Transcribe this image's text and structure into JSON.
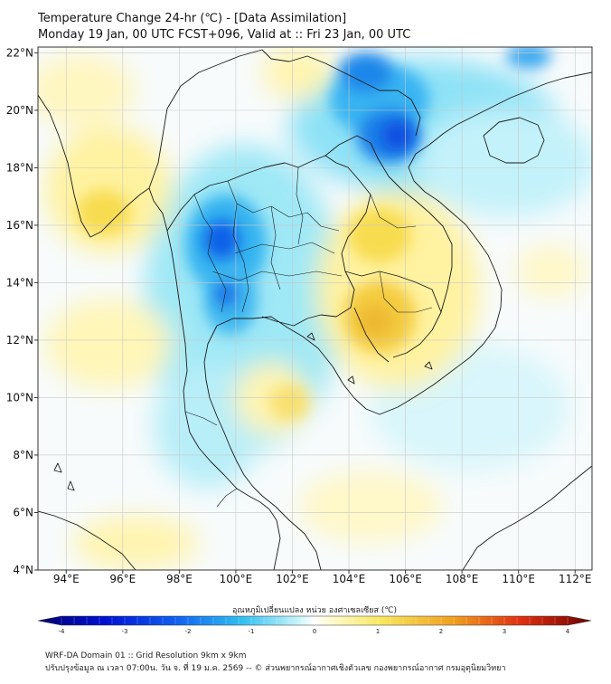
{
  "title_line1": "Temperature Change 24-hr (℃) - [Data Assimilation]",
  "title_line2": "Monday 19 Jan, 00 UTC FCST+096, Valid at :: Fri 23 Jan, 00 UTC",
  "lat_labels": [
    "22°N",
    "20°N",
    "18°N",
    "16°N",
    "14°N",
    "12°N",
    "10°N",
    "8°N",
    "6°N",
    "4°N"
  ],
  "lat_values": [
    22,
    20,
    18,
    16,
    14,
    12,
    10,
    8,
    6,
    4
  ],
  "lon_labels": [
    "94°E",
    "96°E",
    "98°E",
    "100°E",
    "102°E",
    "104°E",
    "106°E",
    "108°E",
    "110°E",
    "112°E"
  ],
  "lon_values": [
    94,
    96,
    98,
    100,
    102,
    104,
    106,
    108,
    110,
    112
  ],
  "colorbar": {
    "title": "อุณหภูมิเปลี่ยนแปลง หน่วย องศาเซลเซียส (℃)",
    "tick_labels": [
      "-4",
      "-3",
      "-2",
      "-1",
      "0",
      "1",
      "2",
      "3",
      "4"
    ],
    "tick_values": [
      -4,
      -3,
      -2,
      -1,
      0,
      1,
      2,
      3,
      4
    ]
  },
  "footer_line1": "WRF-DA Domain 01 :: Grid Resolution 9km x 9km",
  "footer_line2": "ปรับปรุงข้อมูล ณ เวลา 07:00น. วัน จ. ที่ 19 ม.ค. 2569 -- © ส่วนพยากรณ์อากาศเชิงตัวเลข กองพยากรณ์อากาศ กรมอุตุนิยมวิทยา",
  "colors": {
    "cold_strong": "#0050e0",
    "cold": "#3cb8f0",
    "cold_light": "#aaf0f8",
    "neutral": "#ffffff",
    "warm_light": "#fff6b0",
    "warm": "#f6d840",
    "warm_strong": "#f0b020"
  }
}
